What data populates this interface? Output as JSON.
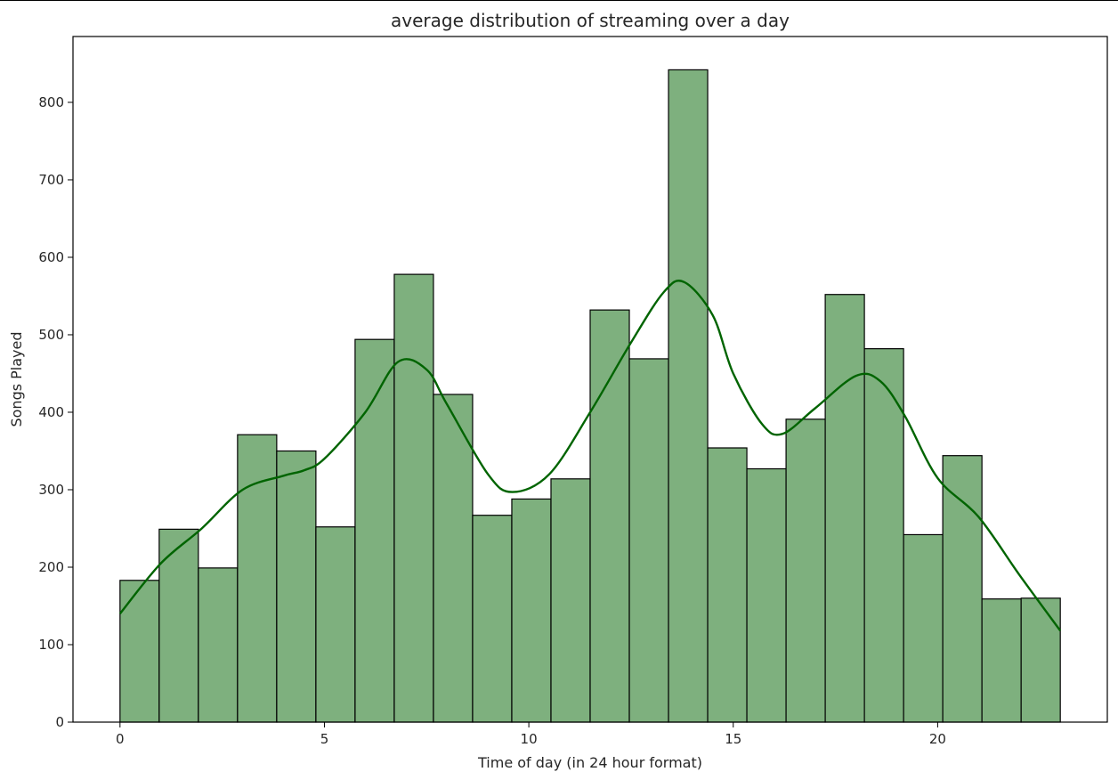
{
  "chart_data": {
    "type": "bar",
    "title": "average distribution of streaming over a day",
    "xlabel": "Time of day (in 24 hour format)",
    "ylabel": "Songs Played",
    "xlim": [
      -1.15,
      24.15
    ],
    "ylim": [
      0,
      885
    ],
    "x_ticks": [
      0,
      5,
      10,
      15,
      20
    ],
    "y_ticks": [
      0,
      100,
      200,
      300,
      400,
      500,
      600,
      700,
      800
    ],
    "bin_edges": [
      0,
      0.9583,
      1.9167,
      2.875,
      3.8333,
      4.7917,
      5.75,
      6.7083,
      7.6667,
      8.625,
      9.5833,
      10.5417,
      11.5,
      12.4583,
      13.4167,
      14.375,
      15.3333,
      16.2917,
      17.25,
      18.2083,
      19.1667,
      20.125,
      21.0833,
      22.0417,
      23
    ],
    "series": [
      {
        "name": "histogram",
        "values": [
          183,
          249,
          199,
          371,
          350,
          252,
          494,
          578,
          423,
          267,
          288,
          314,
          532,
          469,
          842,
          354,
          327,
          391,
          552,
          482,
          242,
          344,
          159,
          160
        ],
        "color": "#7eb07e",
        "edge_color": "#000000"
      },
      {
        "name": "kde",
        "x": [
          0,
          1,
          2,
          3,
          4,
          4.5,
          5,
          6,
          6.8,
          7.5,
          8,
          9,
          9.6,
          10.5,
          11.5,
          12.5,
          13.3,
          13.8,
          14.5,
          15,
          15.7,
          16.2,
          17,
          18,
          18.6,
          19.2,
          20,
          21,
          22,
          23
        ],
        "values": [
          140,
          205,
          250,
          300,
          318,
          325,
          340,
          400,
          465,
          455,
          410,
          320,
          297,
          320,
          400,
          490,
          555,
          568,
          525,
          450,
          385,
          372,
          405,
          447,
          440,
          395,
          315,
          265,
          190,
          118
        ],
        "color": "#006400"
      }
    ],
    "grid": false,
    "legend": "none"
  }
}
